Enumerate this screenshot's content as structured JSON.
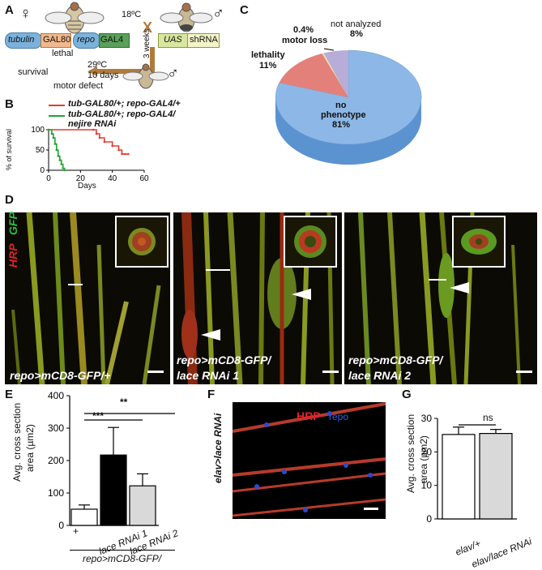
{
  "panels": {
    "A": "A",
    "B": "B",
    "C": "C",
    "D": "D",
    "E": "E",
    "F": "F",
    "G": "G"
  },
  "panel_a": {
    "female_symbol": "♀",
    "male_symbol": "♂",
    "male_symbol_2": "♂",
    "temp1": "18ºC",
    "cross": "X",
    "weeks": "3 weeks",
    "tubulin": "tubulin",
    "gal80": "GAL80",
    "repo": "repo",
    "gal4": "GAL4",
    "uas": "UAS",
    "shrna": "shRNA",
    "lethal": "lethal",
    "survival": "survival",
    "temp2": "29ºC",
    "days10": "10 days",
    "motor": "motor defect"
  },
  "panel_b": {
    "legend1": "tub-GAL80/+; repo-GAL4/+",
    "legend2a": "tub-GAL80/+; repo-GAL4/",
    "legend2b": "nejire RNAi",
    "ylabel": "% of survival",
    "xlabel": "Days"
  },
  "chart_data": [
    {
      "type": "line",
      "panel": "B",
      "xlabel": "Days",
      "ylabel": "% of survival",
      "xlim": [
        0,
        60
      ],
      "ylim": [
        0,
        100
      ],
      "xticks": [
        "0",
        "20",
        "40",
        "60"
      ],
      "yticks": [
        "0",
        "50",
        "100"
      ],
      "series": [
        {
          "name": "tub-GAL80/+; repo-GAL4/+",
          "color": "#e53a2e",
          "x": [
            0,
            28,
            30,
            32,
            35,
            40,
            44,
            46,
            48,
            50
          ],
          "y": [
            100,
            100,
            90,
            80,
            70,
            60,
            50,
            40,
            40,
            40
          ]
        },
        {
          "name": "tub-GAL80/+; repo-GAL4/ nejire RNAi",
          "color": "#1fa431",
          "x": [
            0,
            2,
            3,
            4,
            5,
            6,
            7,
            8,
            9,
            10
          ],
          "y": [
            100,
            90,
            80,
            65,
            50,
            35,
            25,
            15,
            5,
            0
          ]
        }
      ]
    },
    {
      "type": "pie",
      "panel": "C",
      "slices": [
        {
          "label": "no phenotype",
          "value": 81,
          "text": "81%",
          "color": "#8db7e6"
        },
        {
          "label": "lethality",
          "value": 11,
          "text": "11%",
          "color": "#e4807a"
        },
        {
          "label": "motor loss",
          "value": 0.4,
          "text": "0.4%",
          "color": "#ecdcae"
        },
        {
          "label": "not analyzed",
          "value": 8,
          "text": "8%",
          "color": "#b8acd8"
        }
      ]
    },
    {
      "type": "bar",
      "panel": "E",
      "ylabel": "Avg. cross section area (µm2)",
      "ylim": [
        0,
        400
      ],
      "yticks": [
        "0",
        "100",
        "200",
        "300",
        "400"
      ],
      "categories": [
        "+",
        "lace RNAi 1",
        "lace RNAi 2"
      ],
      "values": [
        50,
        217,
        122
      ],
      "errors": [
        13,
        85,
        37
      ],
      "colors": [
        "#ffffff",
        "#000000",
        "#d9d9d9"
      ],
      "group_label": "repo>mCD8-GFP/",
      "significance": [
        "***",
        "**"
      ]
    },
    {
      "type": "bar",
      "panel": "G",
      "ylabel": "Avg. cross section area (µm2)",
      "ylim": [
        0,
        30
      ],
      "yticks": [
        "0",
        "10",
        "20",
        "30"
      ],
      "categories": [
        "elav/+",
        "elav/lace RNAi"
      ],
      "values": [
        25.2,
        25.5
      ],
      "errors": [
        2.2,
        1.2
      ],
      "colors": [
        "#ffffff",
        "#d9d9d9"
      ],
      "significance": [
        "ns"
      ]
    }
  ],
  "panel_c": {
    "not_analyzed_label": "not analyzed",
    "not_analyzed_value": "8%",
    "motor_loss_value": "0.4%",
    "motor_loss_label": "motor loss",
    "lethality_label": "lethality",
    "lethality_value": "11%",
    "no_phenotype_1": "no",
    "no_phenotype_2": "phenotype",
    "no_phenotype_value": "81%"
  },
  "panel_d": {
    "hrp": "HRP",
    "gfp": "GFP",
    "label1": "repo>mCD8-GFP/+",
    "label2a": "repo>mCD8-GFP/",
    "label2b": "lace RNAi 1",
    "label3a": "repo>mCD8-GFP/",
    "label3b": "lace RNAi 2"
  },
  "panel_e": {
    "ylabel1": "Avg. cross section",
    "ylabel2": "area (µm2)",
    "sig1": "***",
    "sig2": "**",
    "cat1": "+",
    "cat2": "lace RNAi 1",
    "cat3": "lace RNAi 2",
    "group": "repo>mCD8-GFP/",
    "yt0": "0",
    "yt100": "100",
    "yt200": "200",
    "yt300": "300",
    "yt400": "400"
  },
  "panel_f": {
    "side_label": "elav>lace RNAi",
    "hrp": "HRP",
    "repo": "repo"
  },
  "panel_g": {
    "ylabel1": "Avg. cross section",
    "ylabel2": "area (µm2)",
    "sig": "ns",
    "cat1": "elav/+",
    "cat2": "elav/lace RNAi",
    "yt0": "0",
    "yt10": "10",
    "yt20": "20",
    "yt30": "30"
  },
  "panel_b_ticks": {
    "x0": "0",
    "x20": "20",
    "x40": "40",
    "x60": "60",
    "y0": "0",
    "y50": "50",
    "y100": "100"
  }
}
